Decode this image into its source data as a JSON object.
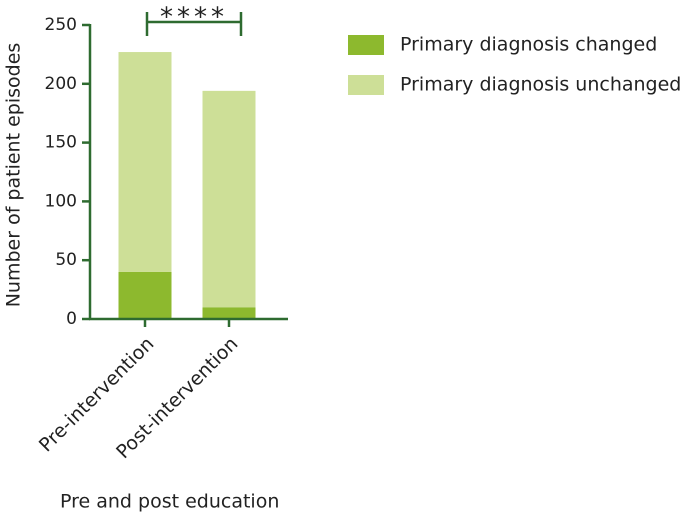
{
  "chart_data": {
    "type": "stacked_bar",
    "categories": [
      "Pre-intervention",
      "Post-intervention"
    ],
    "series": [
      {
        "name": "Primary diagnosis changed",
        "color": "#8db92e",
        "values": [
          40,
          10
        ]
      },
      {
        "name": "Primary diagnosis unchanged",
        "color": "#cddf97",
        "values": [
          187,
          184
        ]
      }
    ],
    "y_label": "Number of patient episodes",
    "x_label": "Pre and post education",
    "ylim": [
      0,
      250
    ],
    "yticks": [
      0,
      50,
      100,
      150,
      200,
      250
    ],
    "annotation": "****"
  }
}
